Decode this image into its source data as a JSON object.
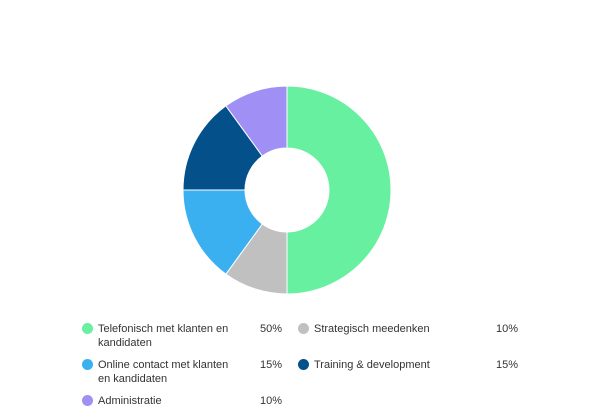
{
  "chart_data": {
    "type": "pie",
    "donut": true,
    "categories": [
      "Telefonisch met klanten en kandidaten",
      "Strategisch meedenken",
      "Online contact met klanten en kandidaten",
      "Training & development",
      "Administratie"
    ],
    "values": [
      50,
      10,
      15,
      15,
      10
    ],
    "value_labels": [
      "50%",
      "10%",
      "15%",
      "15%",
      "10%"
    ],
    "colors": [
      "#66f0a0",
      "#c0c0c0",
      "#3bb0f0",
      "#04508a",
      "#a090f5"
    ],
    "legend": "bottom"
  }
}
